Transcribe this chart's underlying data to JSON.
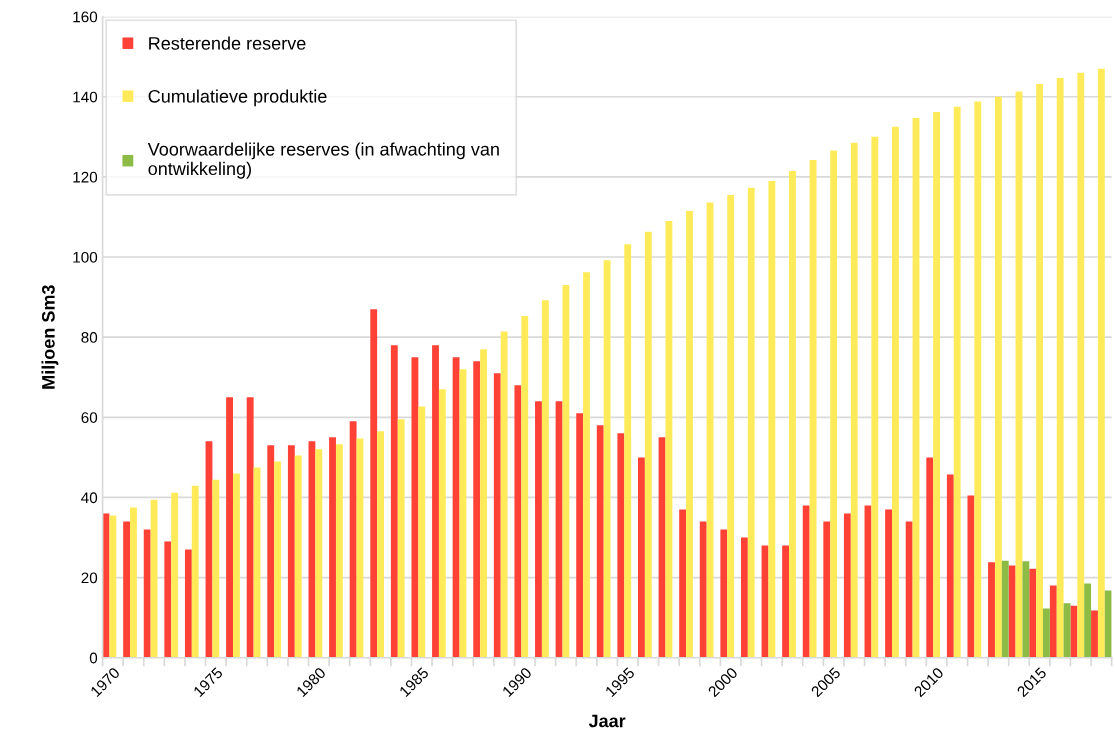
{
  "chart_data": {
    "type": "bar",
    "xlabel": "Jaar",
    "ylabel": "Miljoen Sm3",
    "categories": [
      "1970",
      null,
      null,
      null,
      null,
      "1975",
      null,
      null,
      null,
      null,
      "1980",
      null,
      null,
      null,
      null,
      "1985",
      null,
      null,
      null,
      null,
      "1990",
      null,
      null,
      null,
      null,
      "1995",
      null,
      null,
      null,
      null,
      "2000",
      null,
      null,
      null,
      null,
      "2005",
      null,
      null,
      null,
      null,
      "2010",
      null,
      null,
      null,
      null,
      "2015",
      null,
      null,
      null
    ],
    "series": [
      {
        "name": "Resterende reserve",
        "color": "#ff4136",
        "values": [
          36,
          34,
          32,
          29,
          27,
          54,
          65,
          65,
          53,
          53,
          54,
          55,
          59,
          87,
          78,
          75,
          78,
          75,
          74,
          71,
          68,
          64,
          64,
          61,
          58,
          56,
          50,
          55,
          37,
          34,
          32,
          30,
          28,
          28,
          38,
          34,
          36,
          38,
          37,
          34,
          50,
          45.7,
          40.5,
          23.8,
          23,
          22.2,
          18,
          13,
          11.8
        ]
      },
      {
        "name": "Cumulatieve produktie",
        "color": "#ffeb5a",
        "values": [
          35.5,
          37.5,
          39.4,
          41.2,
          42.9,
          44.4,
          46,
          47.5,
          49,
          50.5,
          52,
          53.3,
          54.7,
          56.5,
          59.5,
          62.7,
          67,
          72,
          77,
          81.4,
          85.3,
          89.2,
          93,
          96.2,
          99.2,
          103.2,
          106.3,
          109,
          111.5,
          113.6,
          115.5,
          117.3,
          119,
          121.5,
          124.2,
          126.6,
          128.5,
          130,
          132.5,
          134.7,
          136.2,
          137.5,
          138.8,
          140,
          141.3,
          143.2,
          144.7,
          146,
          147
        ]
      },
      {
        "name": "Voorwaardelijke reserves (in afwachting van ontwikkeling)",
        "color": "#8cbb46",
        "values": [
          null,
          null,
          null,
          null,
          null,
          null,
          null,
          null,
          null,
          null,
          null,
          null,
          null,
          null,
          null,
          null,
          null,
          null,
          null,
          null,
          null,
          null,
          null,
          null,
          null,
          null,
          null,
          null,
          null,
          null,
          null,
          null,
          null,
          null,
          null,
          null,
          null,
          null,
          null,
          null,
          null,
          null,
          null,
          24.2,
          24.1,
          12.3,
          13.6,
          18.5,
          16.8
        ]
      }
    ],
    "ylim": [
      0,
      160
    ],
    "yticks": [
      0,
      20,
      40,
      60,
      80,
      100,
      120,
      140,
      160
    ],
    "grid": "y",
    "legend": "top left"
  }
}
